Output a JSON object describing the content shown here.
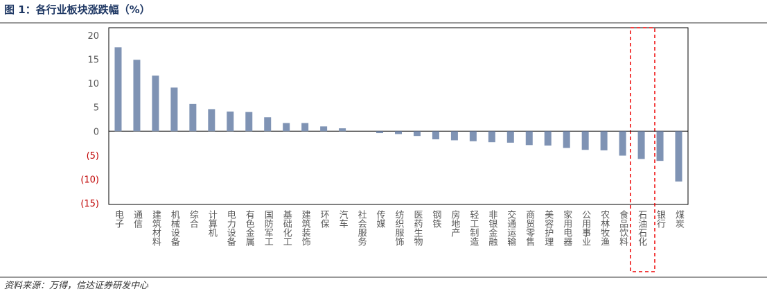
{
  "chart_data": {
    "type": "bar",
    "title": "图 1：各行业板块涨跌幅（%）",
    "source": "资料来源：万得，信达证券研发中心",
    "categories": [
      "电子",
      "通信",
      "建筑材料",
      "机械设备",
      "综合",
      "计算机",
      "电力设备",
      "有色金属",
      "国防军工",
      "基础化工",
      "建筑装饰",
      "环保",
      "汽车",
      "社会服务",
      "传媒",
      "纺织服饰",
      "医药生物",
      "钢铁",
      "房地产",
      "轻工制造",
      "非银金融",
      "交通运输",
      "商贸零售",
      "美容护理",
      "家用电器",
      "公用事业",
      "农林牧渔",
      "食品饮料",
      "石油石化",
      "银行",
      "煤炭"
    ],
    "values": [
      17.5,
      14.9,
      11.6,
      9.1,
      5.7,
      4.6,
      4.1,
      4.0,
      2.9,
      1.7,
      1.7,
      1.0,
      0.6,
      0,
      -0.4,
      -0.6,
      -1.0,
      -1.7,
      -1.9,
      -2.1,
      -2.3,
      -2.4,
      -2.9,
      -3.0,
      -3.5,
      -3.9,
      -4.0,
      -5.1,
      -5.8,
      -6.2,
      -10.5
    ],
    "color": "#7f93b4",
    "ylim": [
      -15,
      20
    ],
    "yticks": [
      20,
      15,
      10,
      5,
      0,
      {
        "value": -5,
        "label": "(5)"
      },
      {
        "value": -10,
        "label": "(10)"
      },
      {
        "value": -15,
        "label": "(15)"
      }
    ],
    "negative_tick_color": "#c00000"
  }
}
